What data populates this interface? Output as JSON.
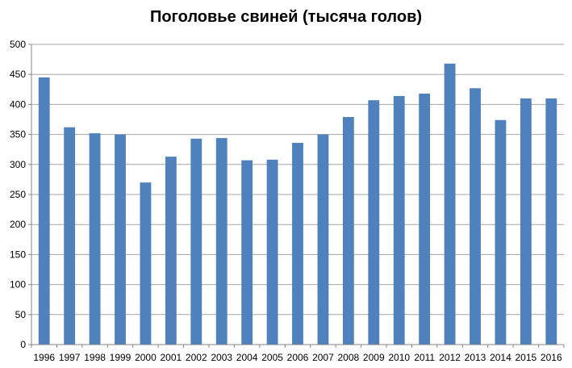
{
  "chart_data": {
    "type": "bar",
    "title": "Поголовье свиней (тысяча голов)",
    "xlabel": "",
    "ylabel": "",
    "categories": [
      "1996",
      "1997",
      "1998",
      "1999",
      "2000",
      "2001",
      "2002",
      "2003",
      "2004",
      "2005",
      "2006",
      "2007",
      "2008",
      "2009",
      "2010",
      "2011",
      "2012",
      "2013",
      "2014",
      "2015",
      "2016"
    ],
    "values": [
      445,
      362,
      352,
      350,
      270,
      313,
      343,
      344,
      307,
      308,
      336,
      350,
      379,
      407,
      414,
      418,
      468,
      427,
      374,
      410,
      410
    ],
    "ylim": [
      0,
      500
    ],
    "yticks": [
      0,
      50,
      100,
      150,
      200,
      250,
      300,
      350,
      400,
      450,
      500
    ],
    "grid": true,
    "legend": "none",
    "bar_color": "#4f81bd",
    "grid_color": "#a6a6a6"
  }
}
